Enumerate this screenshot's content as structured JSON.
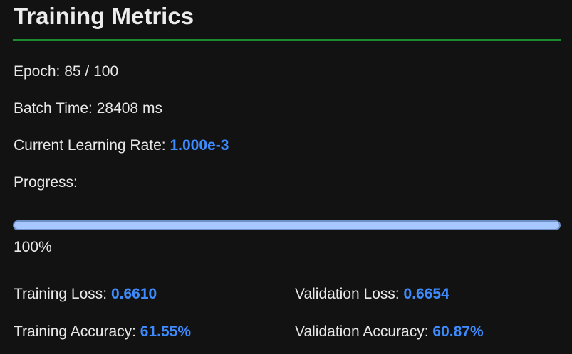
{
  "header": {
    "title": "Training Metrics"
  },
  "metrics": {
    "epoch_label": "Epoch: ",
    "epoch_value": "85 / 100",
    "batch_time_label": "Batch Time: ",
    "batch_time_value": "28408 ms",
    "lr_label": "Current Learning Rate: ",
    "lr_value": "1.000e-3"
  },
  "progress": {
    "label": "Progress:",
    "fraction": 1.0,
    "percent_text": "100%"
  },
  "stats": {
    "training_loss_label": "Training Loss: ",
    "training_loss_value": "0.6610",
    "validation_loss_label": "Validation Loss: ",
    "validation_loss_value": "0.6654",
    "training_accuracy_label": "Training Accuracy: ",
    "training_accuracy_value": "61.55%",
    "validation_accuracy_label": "Validation Accuracy: ",
    "validation_accuracy_value": "60.87%"
  },
  "colors": {
    "accent_value": "#3d8bff",
    "rule_green": "#1c8a2e",
    "progress_fill": "#a6c8ff"
  }
}
